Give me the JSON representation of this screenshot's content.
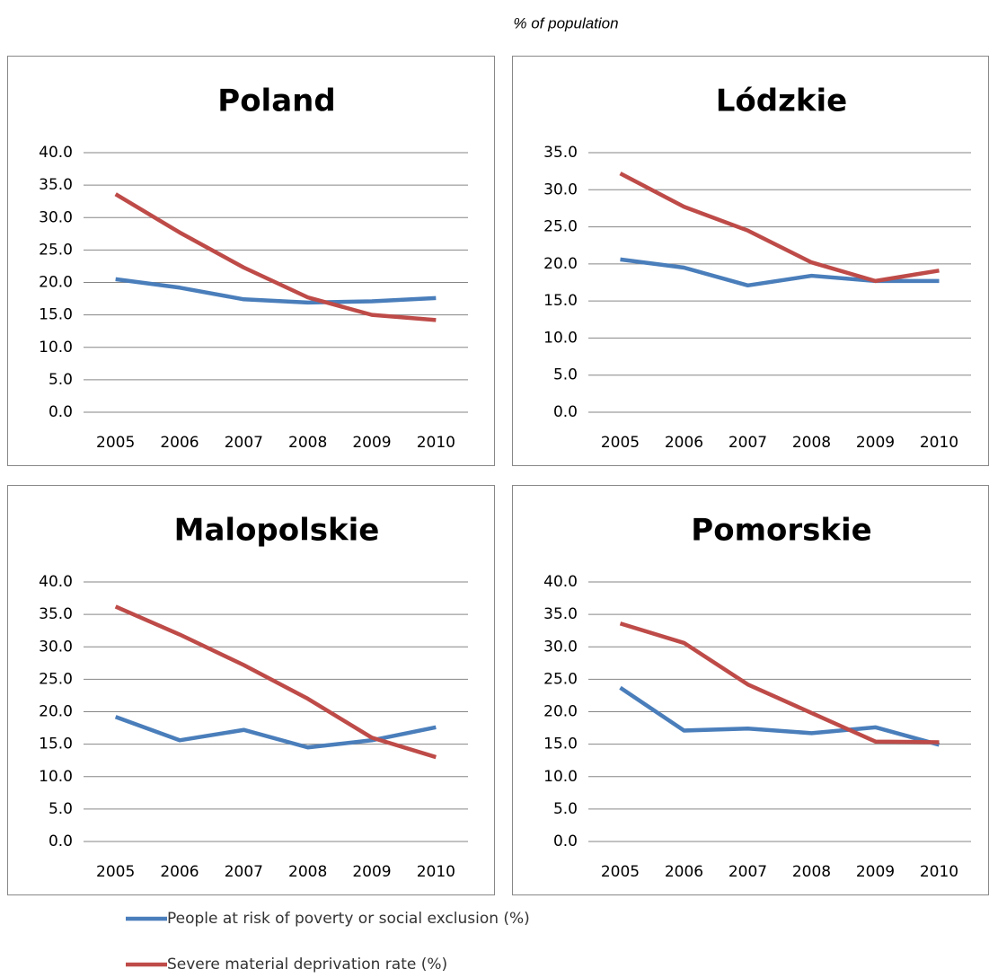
{
  "header": "% of population",
  "chart_data": [
    {
      "type": "line",
      "title": "Poland",
      "categories": [
        "2005",
        "2006",
        "2007",
        "2008",
        "2009",
        "2010"
      ],
      "series": [
        {
          "name": "People at risk of poverty or social exclusion (%)",
          "color": "#4a7ebb",
          "values": [
            20.5,
            19.2,
            17.4,
            16.9,
            17.1,
            17.6
          ]
        },
        {
          "name": "Severe material deprivation rate (%)",
          "color": "#be4b48",
          "values": [
            33.6,
            27.7,
            22.3,
            17.7,
            15.0,
            14.2
          ]
        }
      ],
      "ylim": [
        0,
        40
      ],
      "yticks": [
        {
          "value": 0,
          "label": "0.0"
        },
        {
          "value": 5,
          "label": "5.0"
        },
        {
          "value": 10,
          "label": "10.0"
        },
        {
          "value": 15,
          "label": "15.0"
        },
        {
          "value": 20,
          "label": "20.0"
        },
        {
          "value": 25,
          "label": "25.0"
        },
        {
          "value": 30,
          "label": "30.0"
        },
        {
          "value": 35,
          "label": "35.0"
        },
        {
          "value": 40,
          "label": "40.0"
        }
      ],
      "grid": true
    },
    {
      "type": "line",
      "title": "Lódzkie",
      "categories": [
        "2005",
        "2006",
        "2007",
        "2008",
        "2009",
        "2010"
      ],
      "series": [
        {
          "name": "People at risk of poverty or social exclusion (%)",
          "color": "#4a7ebb",
          "values": [
            20.6,
            19.5,
            17.1,
            18.4,
            17.7,
            17.7
          ]
        },
        {
          "name": "Severe material deprivation rate (%)",
          "color": "#be4b48",
          "values": [
            32.2,
            27.7,
            24.5,
            20.2,
            17.7,
            19.1
          ]
        }
      ],
      "ylim": [
        0,
        35
      ],
      "yticks": [
        {
          "value": 0,
          "label": "0.0"
        },
        {
          "value": 5,
          "label": "5.0"
        },
        {
          "value": 10,
          "label": "10.0"
        },
        {
          "value": 15,
          "label": "15.0"
        },
        {
          "value": 20,
          "label": "20.0"
        },
        {
          "value": 25,
          "label": "25.0"
        },
        {
          "value": 30,
          "label": "30.0"
        },
        {
          "value": 35,
          "label": "35.0"
        }
      ],
      "grid": true
    },
    {
      "type": "line",
      "title": "Malopolskie",
      "categories": [
        "2005",
        "2006",
        "2007",
        "2008",
        "2009",
        "2010"
      ],
      "series": [
        {
          "name": "People at risk of poverty or social exclusion (%)",
          "color": "#4a7ebb",
          "values": [
            19.2,
            15.6,
            17.2,
            14.5,
            15.6,
            17.6
          ]
        },
        {
          "name": "Severe material deprivation rate (%)",
          "color": "#be4b48",
          "values": [
            36.2,
            31.9,
            27.2,
            22.0,
            16.0,
            13.0
          ]
        }
      ],
      "ylim": [
        0,
        40
      ],
      "yticks": [
        {
          "value": 0,
          "label": "0.0"
        },
        {
          "value": 5,
          "label": "5.0"
        },
        {
          "value": 10,
          "label": "10.0"
        },
        {
          "value": 15,
          "label": "15.0"
        },
        {
          "value": 20,
          "label": "20.0"
        },
        {
          "value": 25,
          "label": "25.0"
        },
        {
          "value": 30,
          "label": "30.0"
        },
        {
          "value": 35,
          "label": "35.0"
        },
        {
          "value": 40,
          "label": "40.0"
        }
      ],
      "grid": true
    },
    {
      "type": "line",
      "title": "Pomorskie",
      "categories": [
        "2005",
        "2006",
        "2007",
        "2008",
        "2009",
        "2010"
      ],
      "series": [
        {
          "name": "People at risk of poverty or social exclusion (%)",
          "color": "#4a7ebb",
          "values": [
            23.7,
            17.1,
            17.4,
            16.7,
            17.6,
            14.9
          ]
        },
        {
          "name": "Severe material deprivation rate (%)",
          "color": "#be4b48",
          "values": [
            33.6,
            30.6,
            24.2,
            19.8,
            15.4,
            15.3
          ]
        }
      ],
      "ylim": [
        0,
        40
      ],
      "yticks": [
        {
          "value": 0,
          "label": "0.0"
        },
        {
          "value": 5,
          "label": "5.0"
        },
        {
          "value": 10,
          "label": "10.0"
        },
        {
          "value": 15,
          "label": "15.0"
        },
        {
          "value": 20,
          "label": "20.0"
        },
        {
          "value": 25,
          "label": "25.0"
        },
        {
          "value": 30,
          "label": "30.0"
        },
        {
          "value": 35,
          "label": "35.0"
        },
        {
          "value": 40,
          "label": "40.0"
        }
      ],
      "grid": true
    }
  ]
}
